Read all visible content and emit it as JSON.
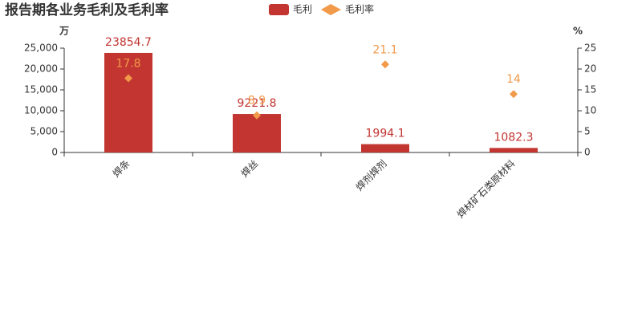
{
  "chart_data": {
    "type": "bar_scatter",
    "title": "报告期各业务毛利及毛利率",
    "y_label": "万",
    "y2_label": "%",
    "categories": [
      "焊条",
      "焊丝",
      "焊剂焊剂",
      "焊材矿石类原材料"
    ],
    "series": [
      {
        "name": "毛利",
        "type": "bar",
        "color": "#c23531",
        "values": [
          23854.7,
          9221.8,
          1994.1,
          1082.3
        ]
      },
      {
        "name": "毛利率",
        "type": "scatter",
        "axis": "y2",
        "color": "#f19a4a",
        "values": [
          17.8,
          8.9,
          21.1,
          14
        ]
      }
    ],
    "ylim": [
      0,
      25000
    ],
    "yticks": [
      0,
      {
        "value": 5000,
        "label": "5,000"
      },
      {
        "value": 10000,
        "label": "10,000"
      },
      {
        "value": 15000,
        "label": "15,000"
      },
      {
        "value": 20000,
        "label": "20,000"
      },
      {
        "value": 25000,
        "label": "25,000"
      }
    ],
    "y2lim": [
      0,
      25
    ],
    "y2ticks": [
      0,
      5,
      10,
      15,
      20,
      25
    ]
  }
}
